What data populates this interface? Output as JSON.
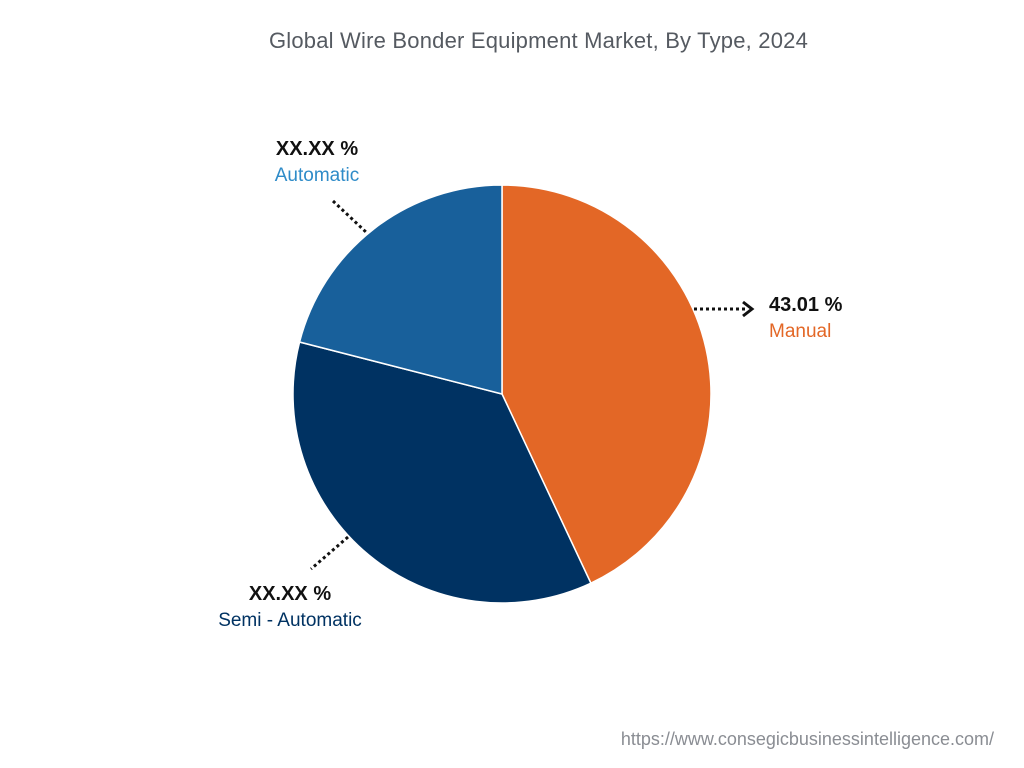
{
  "chart_data": {
    "type": "pie",
    "title": "Global Wire Bonder Equipment Market, By Type, 2024",
    "slices": [
      {
        "name": "Manual",
        "value": 43.01,
        "label": "43.01 %",
        "color": "#e36726"
      },
      {
        "name": "Semi - Automatic",
        "value": 35.99,
        "label": "XX.XX %",
        "color": "#003262"
      },
      {
        "name": "Automatic",
        "value": 21.0,
        "label": "XX.XX %",
        "color": "#18609b"
      }
    ]
  },
  "footer": {
    "url": "https://www.consegicbusinessintelligence.com/"
  }
}
